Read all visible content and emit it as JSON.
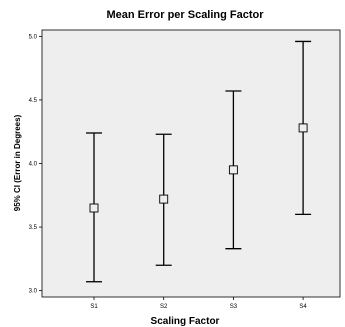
{
  "chart_data": {
    "type": "errorbar",
    "title": "Mean Error per Scaling Factor",
    "xlabel": "Scaling Factor",
    "ylabel": "95% CI (Error in Degrees)",
    "ylim": [
      2.95,
      5.05
    ],
    "yticks": [
      "3.0",
      "3.5",
      "4.0",
      "4.5",
      "5.0"
    ],
    "ytick_values": [
      3.0,
      3.5,
      4.0,
      4.5,
      5.0
    ],
    "categories": [
      "S1",
      "S2",
      "S3",
      "S4"
    ],
    "means": [
      3.65,
      3.72,
      3.95,
      4.28
    ],
    "lower": [
      3.07,
      3.2,
      3.33,
      3.6
    ],
    "upper": [
      4.24,
      4.23,
      4.57,
      4.96
    ],
    "grid": false,
    "plot_background": "#eeeeee",
    "line_color": "#000000"
  }
}
